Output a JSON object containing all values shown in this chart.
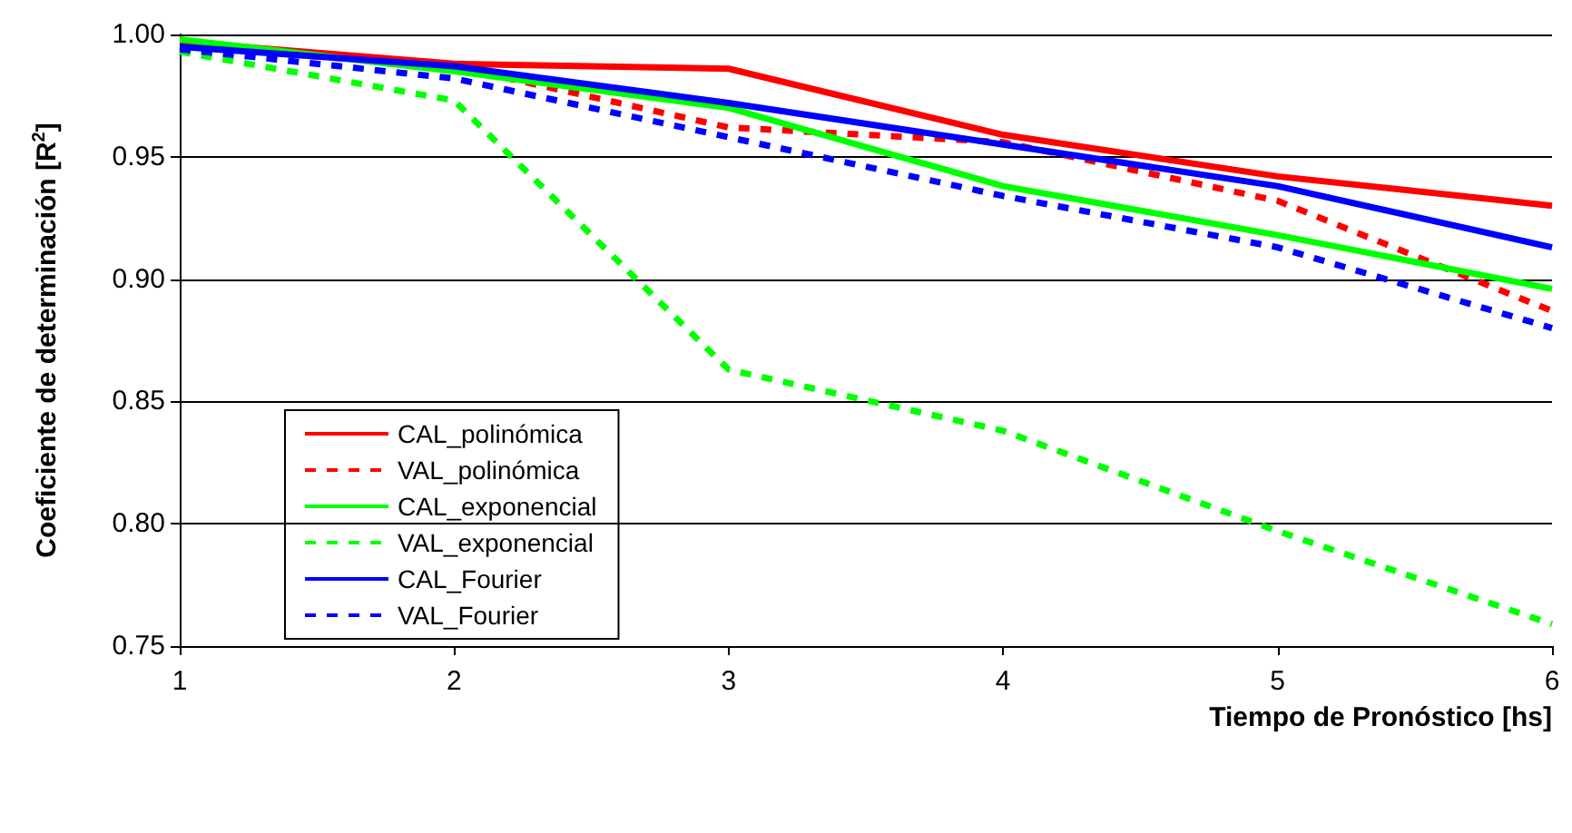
{
  "chart_data": {
    "type": "line",
    "xlabel": "Tiempo de Pronóstico [hs]",
    "ylabel": "Coeficiente de determinación [R$^{2}$]",
    "x": [
      1,
      2,
      3,
      4,
      5,
      6
    ],
    "xlim": [
      1,
      6
    ],
    "xticks": [
      1,
      2,
      3,
      4,
      5,
      6
    ],
    "ylim": [
      0.75,
      1.0
    ],
    "yticks": [
      0.75,
      {
        "value": 0.8,
        "label": "0.80"
      },
      0.85,
      {
        "value": 0.9,
        "label": "0.90"
      },
      0.95,
      {
        "value": 1.0,
        "label": "1.00"
      }
    ],
    "grid": "y",
    "legend": "bottom left",
    "marker": "none",
    "series": [
      {
        "name": "CAL_polinómica",
        "color": "#ff0000",
        "line_style": "solid",
        "values": [
          0.997,
          0.988,
          0.986,
          0.959,
          0.942,
          0.93
        ]
      },
      {
        "name": "VAL_polinómica",
        "color": "#ff0000",
        "line_style": "dashed",
        "values": [
          0.995,
          0.987,
          0.962,
          0.956,
          0.932,
          0.887
        ]
      },
      {
        "name": "CAL_exponencial",
        "color": "#00ff00",
        "line_style": "solid",
        "values": [
          0.998,
          0.985,
          0.97,
          0.938,
          0.918,
          0.896
        ]
      },
      {
        "name": "VAL_exponencial",
        "color": "#00ff00",
        "line_style": "dashed",
        "values": [
          0.993,
          0.973,
          0.863,
          0.838,
          0.797,
          0.759
        ]
      },
      {
        "name": "CAL_Fourier",
        "color": "#0000ff",
        "line_style": "solid",
        "values": [
          0.995,
          0.987,
          0.972,
          0.955,
          0.938,
          0.913
        ]
      },
      {
        "name": "VAL_Fourier",
        "color": "#0000ff",
        "line_style": "dashed",
        "values": [
          0.994,
          0.982,
          0.958,
          0.934,
          0.913,
          0.88
        ]
      }
    ]
  }
}
